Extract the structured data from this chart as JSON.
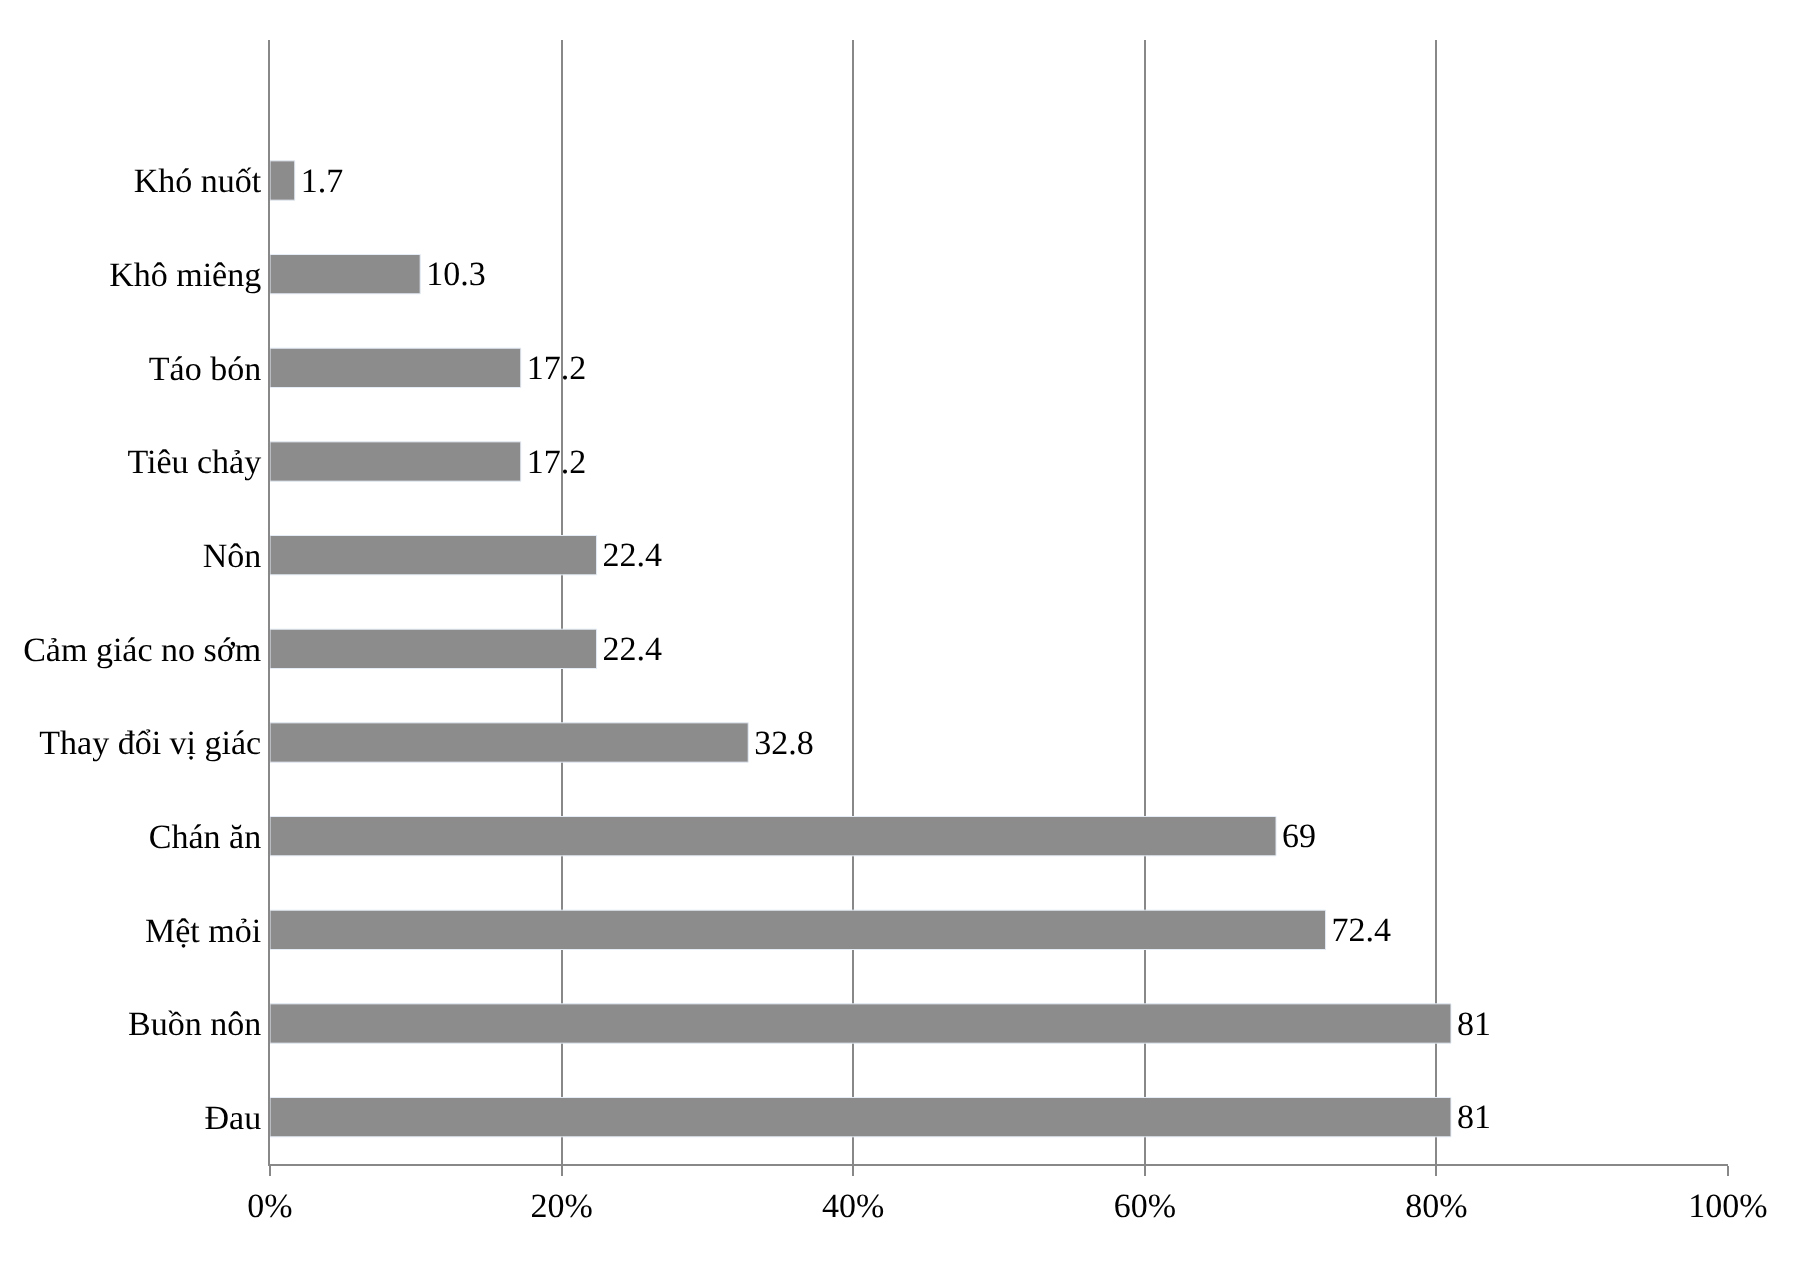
{
  "chart_data": {
    "type": "bar",
    "orientation": "horizontal",
    "categories": [
      null,
      "Khó nuốt",
      "Khô miêng",
      "Táo bón",
      "Tiêu chảy",
      "Nôn",
      "Cảm giác no sớm",
      "Thay đổi vị giác",
      "Chán ăn",
      "Mệt mỏi",
      "Buồn nôn",
      "Đau"
    ],
    "values": [
      null,
      1.7,
      10.3,
      17.2,
      17.2,
      22.4,
      22.4,
      32.8,
      69,
      72.4,
      81,
      81
    ],
    "color": "#8c8c8c",
    "xlim": [
      0,
      100
    ],
    "xticks": [
      {
        "value": 0,
        "label": "0%"
      },
      {
        "value": 20,
        "label": "20%"
      },
      {
        "value": 40,
        "label": "40%"
      },
      {
        "value": 60,
        "label": "60%"
      },
      {
        "value": 80,
        "label": "80%"
      },
      {
        "value": 100,
        "label": "100%"
      }
    ],
    "grid": "x",
    "data_labels": true
  }
}
